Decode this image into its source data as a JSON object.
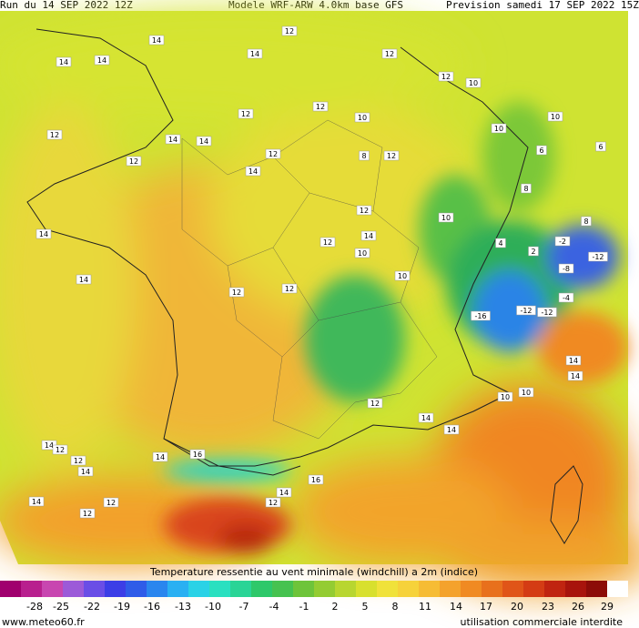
{
  "header": {
    "run": "Run du 14 SEP 2022 12Z",
    "model": "Modele WRF-ARW 4.0km base GFS",
    "forecast": "Prevision samedi 17 SEP 2022 15Z"
  },
  "map": {
    "colors": {
      "sea_north": "#c8e632",
      "land_west": "#f2b233",
      "land_center": "#e8dc3a",
      "alps": "#2fb35a",
      "mediterranean": "#f08a22",
      "pyrenees_spain": "#e0531c",
      "spain": "#f3a52c"
    },
    "labels": [
      {
        "t": "14"
      },
      {
        "t": "14"
      },
      {
        "t": "14"
      },
      {
        "t": "12"
      },
      {
        "t": "14"
      },
      {
        "t": "12"
      },
      {
        "t": "12"
      },
      {
        "t": "12"
      },
      {
        "t": "10"
      },
      {
        "t": "12"
      },
      {
        "t": "14"
      },
      {
        "t": "12"
      },
      {
        "t": "12"
      },
      {
        "t": "12"
      },
      {
        "t": "14"
      },
      {
        "t": "12"
      },
      {
        "t": "14"
      },
      {
        "t": "14"
      },
      {
        "t": "14"
      },
      {
        "t": "12"
      },
      {
        "t": "14"
      },
      {
        "t": "12"
      },
      {
        "t": "10"
      },
      {
        "t": "10"
      },
      {
        "t": "8"
      },
      {
        "t": "12"
      },
      {
        "t": "10"
      },
      {
        "t": "10"
      },
      {
        "t": "10"
      },
      {
        "t": "8"
      },
      {
        "t": "10"
      },
      {
        "t": "6"
      },
      {
        "t": "6"
      },
      {
        "t": "8"
      },
      {
        "t": "4"
      },
      {
        "t": "2"
      },
      {
        "t": "-2"
      },
      {
        "t": "-12"
      },
      {
        "t": "-8"
      },
      {
        "t": "-12"
      },
      {
        "t": "-16"
      },
      {
        "t": "-12"
      },
      {
        "t": "-4"
      },
      {
        "t": "14"
      },
      {
        "t": "14"
      },
      {
        "t": "10"
      },
      {
        "t": "10"
      },
      {
        "t": "14"
      },
      {
        "t": "12"
      },
      {
        "t": "14"
      },
      {
        "t": "12"
      },
      {
        "t": "14"
      },
      {
        "t": "16"
      },
      {
        "t": "14"
      },
      {
        "t": "12"
      },
      {
        "t": "16"
      },
      {
        "t": "14"
      },
      {
        "t": "12"
      },
      {
        "t": "12"
      },
      {
        "t": "14"
      },
      {
        "t": "12"
      },
      {
        "t": "12"
      },
      {
        "t": "14"
      }
    ]
  },
  "colorbar": {
    "title": "Temperature ressentie au vent minimale (windchill) a 2m (indice)",
    "colors": [
      "#a0006e",
      "#b8208e",
      "#c846b0",
      "#9c5ad8",
      "#6a4ee6",
      "#3c3ee6",
      "#2f5ce8",
      "#2a86ee",
      "#2ab0f2",
      "#2ad2e6",
      "#2ae0c0",
      "#2ad496",
      "#2ec86a",
      "#46c250",
      "#6ec43a",
      "#94cc32",
      "#b8d630",
      "#d8e02e",
      "#f0e23a",
      "#f6d23a",
      "#f6bc34",
      "#f4a22c",
      "#f08a22",
      "#e8701c",
      "#e05518",
      "#d43c14",
      "#c02410",
      "#a8140c",
      "#8c0c08",
      "#ffffff"
    ],
    "ticks": [
      "-28",
      "-25",
      "-22",
      "-19",
      "-16",
      "-13",
      "-10",
      "-7",
      "-4",
      "-1",
      "2",
      "5",
      "8",
      "11",
      "14",
      "17",
      "20",
      "23",
      "26",
      "29"
    ]
  },
  "footer": {
    "site": "www.meteo60.fr",
    "notice": "utilisation commerciale interdite"
  }
}
